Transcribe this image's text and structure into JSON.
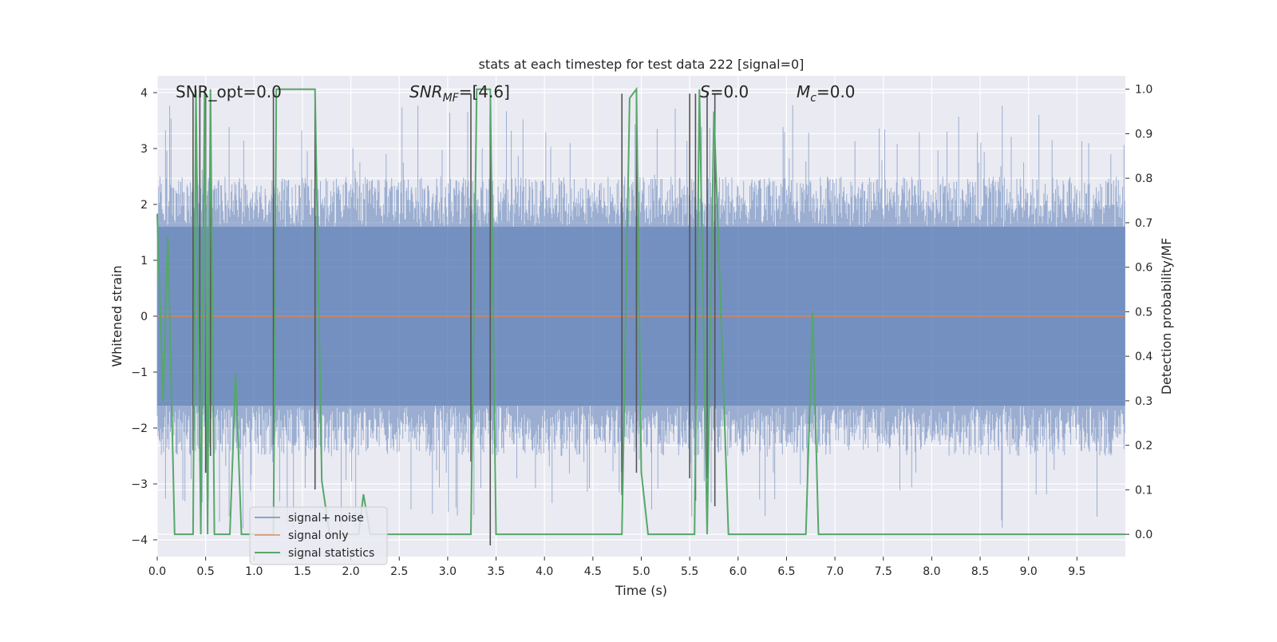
{
  "chart_data": {
    "type": "line",
    "title": "stats at each timestep for test data 222 [signal=0]",
    "xlabel": "Time (s)",
    "ylabel_left": "Whitened strain",
    "ylabel_right": "Detection probability/MF",
    "xlim": [
      0.0,
      10.0
    ],
    "ylim_left": [
      -4.3,
      4.3
    ],
    "ylim_right": [
      -0.05,
      1.03
    ],
    "x_ticks": [
      "0.0",
      "0.5",
      "1.0",
      "1.5",
      "2.0",
      "2.5",
      "3.0",
      "3.5",
      "4.0",
      "4.5",
      "5.0",
      "5.5",
      "6.0",
      "6.5",
      "7.0",
      "7.5",
      "8.0",
      "8.5",
      "9.0",
      "9.5"
    ],
    "y_ticks_left": [
      "−4",
      "−3",
      "−2",
      "−1",
      "0",
      "1",
      "2",
      "3",
      "4"
    ],
    "y_ticks_right": [
      "0.0",
      "0.1",
      "0.2",
      "0.3",
      "0.4",
      "0.5",
      "0.6",
      "0.7",
      "0.8",
      "0.9",
      "1.0"
    ],
    "grid": true,
    "background_color": "#eaeaf2",
    "annotations": {
      "snr_opt": "SNR_opt=0.0",
      "snr_mf_sym": "SNR",
      "snr_mf_sub": "MF",
      "snr_mf_rest": "=[4.6]",
      "s_sym": "S",
      "s_rest": "=0.0",
      "mc_sym": "M",
      "mc_sub": "c",
      "mc_rest": "=0.0"
    },
    "legend": {
      "placement": "lower-left",
      "entries": [
        "signal+ noise",
        "signal only",
        "signal statistics"
      ]
    },
    "series": [
      {
        "name": "signal+ noise",
        "axis": "left",
        "color": "#4c72b0",
        "envelope": "noise",
        "envelope_center": 0.0,
        "dense_band": [
          -1.6,
          1.6
        ],
        "spike_range": [
          -3.8,
          3.8
        ]
      },
      {
        "name": "signal only",
        "axis": "left",
        "color": "#dd8452",
        "x": [
          0.0,
          10.0
        ],
        "y": [
          0.0,
          0.0
        ]
      },
      {
        "name": "signal statistics",
        "axis": "right",
        "color": "#55a868",
        "x": [
          0.0,
          0.06,
          0.11,
          0.18,
          0.37,
          0.4,
          0.45,
          0.49,
          0.52,
          0.55,
          0.59,
          0.64,
          0.75,
          0.81,
          0.87,
          0.93,
          1.0,
          1.12,
          1.2,
          1.23,
          1.28,
          1.63,
          1.7,
          1.78,
          1.85,
          2.0,
          2.08,
          2.13,
          2.2,
          2.3,
          3.1,
          3.24,
          3.3,
          3.44,
          3.5,
          4.8,
          4.88,
          4.95,
          5.0,
          5.07,
          5.5,
          5.55,
          5.6,
          5.68,
          5.75,
          5.8,
          5.9,
          6.0,
          6.7,
          6.77,
          6.83,
          7.0,
          10.0
        ],
        "y": [
          0.72,
          0.3,
          0.67,
          0.0,
          0.0,
          1.0,
          0.0,
          1.0,
          0.0,
          1.0,
          0.0,
          0.0,
          0.0,
          0.36,
          0.0,
          0.0,
          0.0,
          0.0,
          0.0,
          1.0,
          1.0,
          1.0,
          0.12,
          0.0,
          0.0,
          0.0,
          0.0,
          0.09,
          0.0,
          0.0,
          0.0,
          0.0,
          1.0,
          1.0,
          0.0,
          0.0,
          0.98,
          1.0,
          0.14,
          0.0,
          0.0,
          0.0,
          1.0,
          0.0,
          0.95,
          0.64,
          0.0,
          0.0,
          0.0,
          0.5,
          0.0,
          0.0,
          0.0
        ]
      }
    ],
    "markers": {
      "color": "#555555",
      "x": [
        0.37,
        0.44,
        0.5,
        0.55,
        1.2,
        1.63,
        3.24,
        3.44,
        4.8,
        4.95,
        5.5,
        5.56,
        5.68,
        5.76
      ],
      "top_y": [
        0.99,
        0.99,
        0.99,
        0.99,
        0.99,
        0.99,
        0.99,
        0.99,
        0.99,
        0.99,
        0.99,
        0.99,
        0.99,
        0.99
      ],
      "bottom_y": [
        -2.4,
        -2.6,
        -2.8,
        -2.5,
        -2.3,
        -3.1,
        -2.6,
        -4.1,
        -3.2,
        -2.8,
        -2.9,
        -3.3,
        -2.9,
        -3.4
      ]
    }
  }
}
